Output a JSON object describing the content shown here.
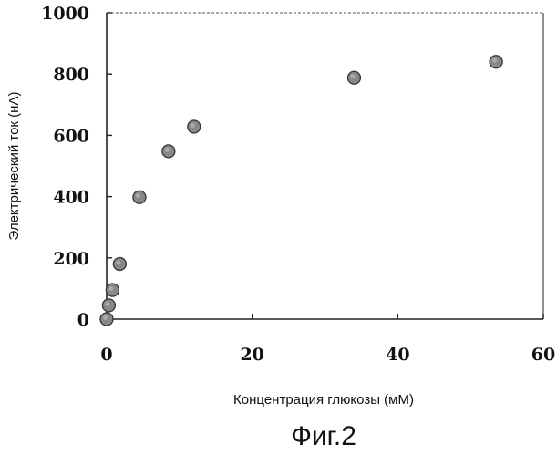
{
  "figure_caption": "Фиг.2",
  "chart_data": {
    "type": "scatter",
    "title": "",
    "xlabel": "Концентрация глюкозы (мМ)",
    "ylabel": "Электрический ток (нА)",
    "xlim": [
      0,
      60
    ],
    "ylim": [
      0,
      1000
    ],
    "x_ticks": [
      "0",
      "20",
      "40",
      "60"
    ],
    "y_ticks": [
      "0",
      "200",
      "400",
      "600",
      "800",
      "1000"
    ],
    "grid": false,
    "legend": "none",
    "marker_color": "#888888",
    "series": [
      {
        "points": [
          {
            "x": 0,
            "y": 0
          },
          {
            "x": 0.3,
            "y": 45
          },
          {
            "x": 0.8,
            "y": 95
          },
          {
            "x": 1.8,
            "y": 180
          },
          {
            "x": 4.5,
            "y": 398
          },
          {
            "x": 8.5,
            "y": 548
          },
          {
            "x": 12,
            "y": 628
          },
          {
            "x": 34,
            "y": 788
          },
          {
            "x": 53.5,
            "y": 840
          }
        ]
      }
    ]
  }
}
